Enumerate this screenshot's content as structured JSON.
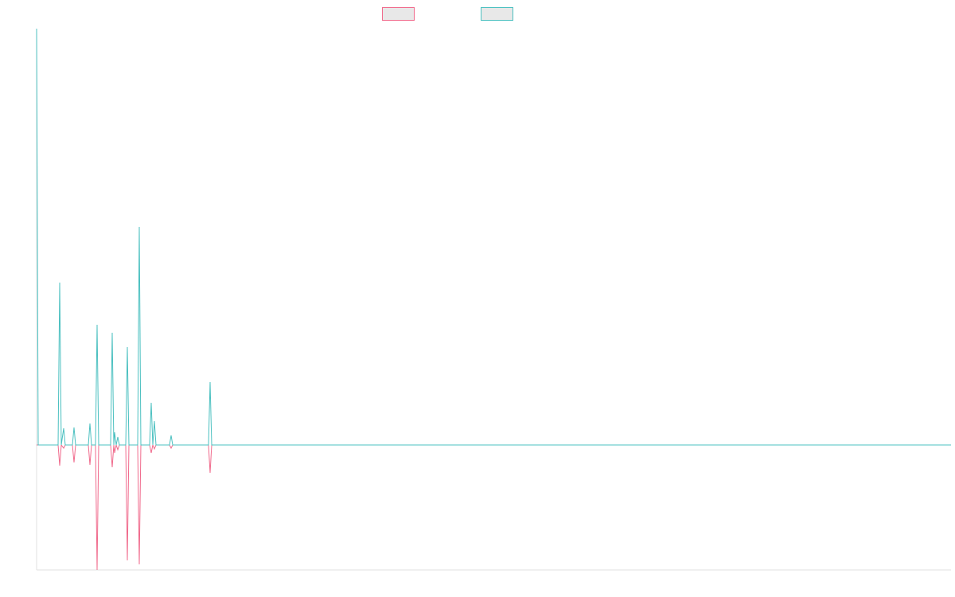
{
  "chart_data": {
    "type": "line",
    "x": [
      0,
      2,
      27,
      29,
      31,
      34,
      36,
      45,
      47,
      49,
      65,
      67,
      69,
      74,
      76,
      78,
      93,
      95,
      97,
      98,
      100,
      102,
      104,
      112,
      114,
      116,
      127,
      129,
      131,
      142,
      144,
      146,
      148,
      150,
      167,
      169,
      171,
      216,
      218,
      220,
      1149
    ],
    "xlim": [
      0,
      1149
    ],
    "ylim": [
      -157,
      523
    ],
    "series": [
      {
        "color": "#f06a8c",
        "values": [
          0,
          0,
          0,
          -26,
          0,
          -4,
          0,
          0,
          -22,
          0,
          0,
          -25,
          0,
          0,
          -157,
          0,
          0,
          -28,
          0,
          -10,
          0,
          -6,
          0,
          0,
          -145,
          0,
          0,
          -150,
          0,
          0,
          -10,
          0,
          -5,
          0,
          0,
          -4,
          0,
          0,
          -35,
          0,
          0
        ]
      },
      {
        "color": "#4bc0c0",
        "values": [
          523,
          0,
          0,
          204,
          0,
          21,
          0,
          0,
          22,
          0,
          0,
          27,
          0,
          0,
          151,
          0,
          0,
          141,
          0,
          16,
          0,
          10,
          0,
          0,
          123,
          0,
          0,
          274,
          0,
          0,
          53,
          0,
          30,
          0,
          0,
          12,
          0,
          0,
          79,
          0,
          0
        ]
      }
    ]
  }
}
